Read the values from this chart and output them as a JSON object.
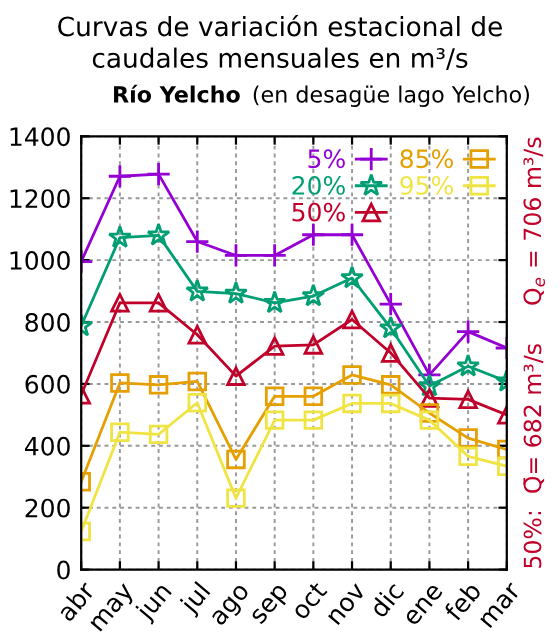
{
  "chart_data": {
    "type": "line",
    "title": "Curvas de variación estacional de\ncaudales mensuales en m³/s",
    "subtitle": "Río Yelcho",
    "annotations": [
      "(en desagüe lago Yelcho)",
      "50%:  Q̄= 682 m³/s",
      "Q$_{e}$ = 706 m³/s"
    ],
    "categories": [
      "abr",
      "may",
      "jun",
      "jul",
      "ago",
      "sep",
      "oct",
      "nov",
      "dic",
      "ene",
      "feb",
      "mar"
    ],
    "series": [
      {
        "name": "5%",
        "color": "#9400d3",
        "marker": "cross",
        "values": [
          995,
          1271,
          1278,
          1060,
          1015,
          1015,
          1082,
          1082,
          858,
          629,
          769,
          716
        ]
      },
      {
        "name": "20%",
        "color": "#009e73",
        "marker": "star",
        "values": [
          787,
          1073,
          1080,
          899,
          892,
          862,
          884,
          942,
          780,
          593,
          657,
          608
        ]
      },
      {
        "name": "50%",
        "color": "#c0002a",
        "marker": "triangle",
        "values": [
          565,
          862,
          862,
          759,
          625,
          722,
          726,
          808,
          700,
          554,
          550,
          500
        ]
      },
      {
        "name": "85%",
        "color": "#e69f00",
        "marker": "square",
        "values": [
          284,
          603,
          597,
          608,
          356,
          560,
          560,
          629,
          597,
          506,
          425,
          388
        ]
      },
      {
        "name": "95%",
        "color": "#f0e442",
        "marker": "square",
        "values": [
          123,
          444,
          437,
          539,
          231,
          483,
          483,
          537,
          537,
          483,
          366,
          334
        ]
      }
    ],
    "ylim": [
      0,
      1400
    ],
    "yticks": [
      0,
      200,
      400,
      600,
      800,
      1000,
      1200,
      1400
    ],
    "grid": true,
    "legend": "top right",
    "line_style": "solid"
  }
}
